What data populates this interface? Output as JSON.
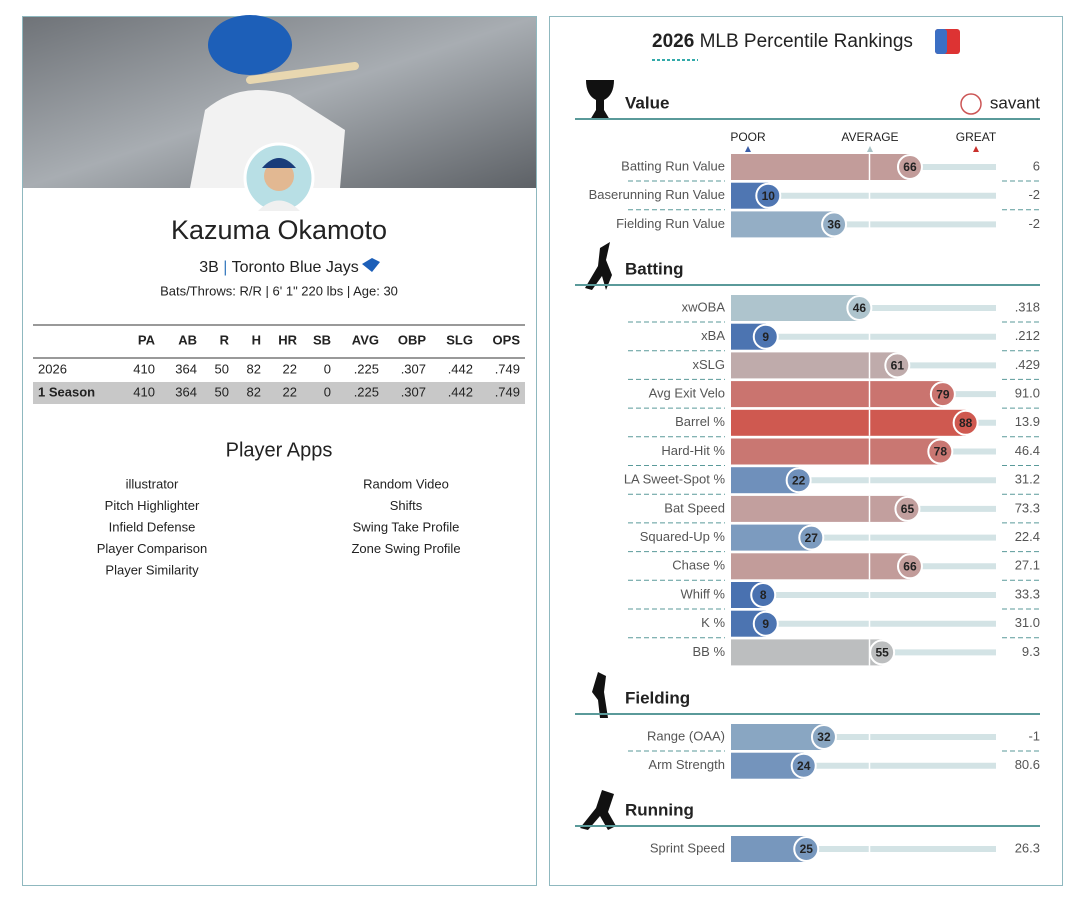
{
  "profile": {
    "name": "Kazuma Okamoto",
    "position": "3B",
    "separator": "|",
    "team": "Toronto Blue Jays",
    "bio": "Bats/Throws: R/R | 6' 1\" 220 lbs | Age: 30"
  },
  "stats_table": {
    "columns": [
      "PA",
      "AB",
      "R",
      "H",
      "HR",
      "SB",
      "AVG",
      "OBP",
      "SLG",
      "OPS"
    ],
    "rows": [
      {
        "label": "2026",
        "values": [
          "410",
          "364",
          "50",
          "82",
          "22",
          "0",
          ".225",
          ".307",
          ".442",
          ".749"
        ]
      },
      {
        "label": "1 Season",
        "values": [
          "410",
          "364",
          "50",
          "82",
          "22",
          "0",
          ".225",
          ".307",
          ".442",
          ".749"
        ]
      }
    ]
  },
  "apps": {
    "title": "Player Apps",
    "left": [
      "illustrator",
      "Pitch Highlighter",
      "Infield Defense",
      "Player Comparison",
      "Player Similarity"
    ],
    "right": [
      "Random Video",
      "Shifts",
      "Swing Take Profile",
      "Zone Swing Profile"
    ]
  },
  "rankings": {
    "title_year": "2026",
    "title": "MLB Percentile Rankings",
    "brand": "savant",
    "scale": [
      "POOR",
      "AVERAGE",
      "GREAT"
    ],
    "sections": [
      {
        "title": "Value",
        "rows": [
          {
            "label": "Batting Run Value",
            "percentile": 66,
            "value": "6"
          },
          {
            "label": "Baserunning Run Value",
            "percentile": 10,
            "value": "-2"
          },
          {
            "label": "Fielding Run Value",
            "percentile": 36,
            "value": "-2"
          }
        ]
      },
      {
        "title": "Batting",
        "rows": [
          {
            "label": "xwOBA",
            "percentile": 46,
            "value": ".318"
          },
          {
            "label": "xBA",
            "percentile": 9,
            "value": ".212"
          },
          {
            "label": "xSLG",
            "percentile": 61,
            "value": ".429"
          },
          {
            "label": "Avg Exit Velo",
            "percentile": 79,
            "value": "91.0"
          },
          {
            "label": "Barrel %",
            "percentile": 88,
            "value": "13.9"
          },
          {
            "label": "Hard-Hit %",
            "percentile": 78,
            "value": "46.4"
          },
          {
            "label": "LA Sweet-Spot %",
            "percentile": 22,
            "value": "31.2"
          },
          {
            "label": "Bat Speed",
            "percentile": 65,
            "value": "73.3"
          },
          {
            "label": "Squared-Up %",
            "percentile": 27,
            "value": "22.4"
          },
          {
            "label": "Chase %",
            "percentile": 66,
            "value": "27.1"
          },
          {
            "label": "Whiff %",
            "percentile": 8,
            "value": "33.3"
          },
          {
            "label": "K %",
            "percentile": 9,
            "value": "31.0"
          },
          {
            "label": "BB %",
            "percentile": 55,
            "value": "9.3"
          }
        ]
      },
      {
        "title": "Fielding",
        "rows": [
          {
            "label": "Range (OAA)",
            "percentile": 32,
            "value": "-1"
          },
          {
            "label": "Arm Strength",
            "percentile": 24,
            "value": "80.6"
          }
        ]
      },
      {
        "title": "Running",
        "rows": [
          {
            "label": "Sprint Speed",
            "percentile": 25,
            "value": "26.3"
          }
        ]
      }
    ]
  }
}
